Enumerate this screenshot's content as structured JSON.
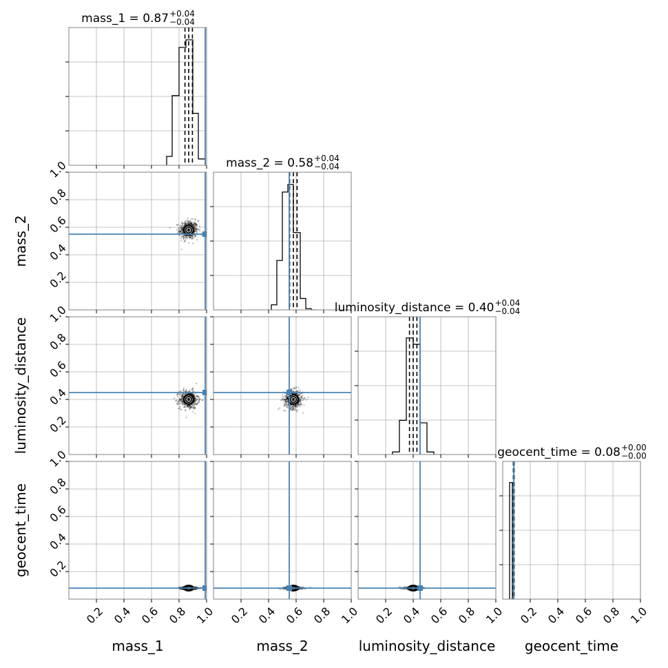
{
  "chart_data": {
    "type": "corner",
    "parameters": [
      {
        "name": "mass_1",
        "median": 0.87,
        "sigma": 0.027,
        "truth": 0.99
      },
      {
        "name": "mass_2",
        "median": 0.58,
        "sigma": 0.027,
        "truth": 0.55
      },
      {
        "name": "luminosity_distance",
        "median": 0.4,
        "sigma": 0.027,
        "truth": 0.45
      },
      {
        "name": "geocent_time",
        "median": 0.08,
        "sigma": 0.003,
        "truth": 0.08
      }
    ],
    "titles": [
      {
        "lhs": "mass_1 = 0.87",
        "plus": "+0.04",
        "minus": "−0.04"
      },
      {
        "lhs": "mass_2 = 0.58",
        "plus": "+0.04",
        "minus": "−0.04"
      },
      {
        "lhs": "luminosity_distance = 0.40",
        "plus": "+0.04",
        "minus": "−0.04"
      },
      {
        "lhs": "geocent_time = 0.08",
        "plus": "+0.00",
        "minus": "−0.00"
      }
    ],
    "xlabels": [
      "mass_1",
      "mass_2",
      "luminosity_distance",
      "geocent_time"
    ],
    "ylabels": [
      "mass_2",
      "luminosity_distance",
      "geocent_time"
    ],
    "xlim": [
      0,
      1
    ],
    "ylim": [
      0,
      1
    ],
    "x_ticks": [
      "0.2",
      "0.4",
      "0.6",
      "0.8",
      "1.0"
    ],
    "y_ticks": [
      "0.2",
      "0.4",
      "0.6",
      "0.8",
      "1.0"
    ],
    "quantiles": [
      0.16,
      0.5,
      0.84
    ],
    "histograms": [
      {
        "bin_edges": [
          0.71,
          0.75,
          0.8,
          0.85,
          0.9,
          0.94,
          0.99
        ],
        "counts": [
          0.07,
          0.55,
          0.93,
          0.99,
          0.41,
          0.05
        ]
      },
      {
        "bin_edges": [
          0.42,
          0.46,
          0.5,
          0.54,
          0.58,
          0.63,
          0.67,
          0.71,
          0.75
        ],
        "counts": [
          0.04,
          0.39,
          0.93,
          0.99,
          0.61,
          0.09,
          0.01,
          0.0
        ]
      },
      {
        "bin_edges": [
          0.25,
          0.3,
          0.35,
          0.4,
          0.45,
          0.5,
          0.55
        ],
        "counts": [
          0.02,
          0.27,
          0.92,
          0.87,
          0.25,
          0.02
        ]
      },
      {
        "bin_edges": [
          0.05,
          0.07,
          0.09
        ],
        "counts": [
          0.92,
          0.0
        ]
      }
    ],
    "grid": true,
    "colors": {
      "truth": "#4682b4",
      "hist": "#000000",
      "contour_fill": "#ffffff",
      "grid": "#b0b0b0"
    }
  }
}
